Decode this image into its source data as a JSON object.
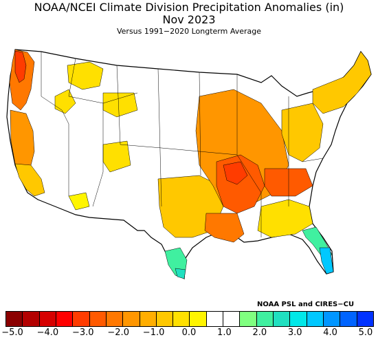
{
  "title_line1": "NOAA/NCEI Climate Division Precipitation Anomalies (in)",
  "title_line2": "Nov 2023",
  "subtitle": "Versus 1991−2020 Longterm Average",
  "credit": "NOAA PSL and CIRES−CU",
  "legend": {
    "colors": [
      "#8b0000",
      "#b30000",
      "#d60000",
      "#ff0000",
      "#ff3c00",
      "#ff5a00",
      "#ff7800",
      "#ff9600",
      "#ffae00",
      "#ffc800",
      "#ffe000",
      "#fff500",
      "#ffffff",
      "#ffffff",
      "#80ff80",
      "#40f0a0",
      "#20e0c0",
      "#00e8e8",
      "#00c8ff",
      "#0096ff",
      "#0064ff",
      "#0032ff"
    ],
    "ticks": [
      "−5.0",
      "−4.0",
      "−3.0",
      "−2.0",
      "−1.0",
      "0.0",
      "1.0",
      "2.0",
      "3.0",
      "4.0",
      "5.0"
    ]
  }
}
